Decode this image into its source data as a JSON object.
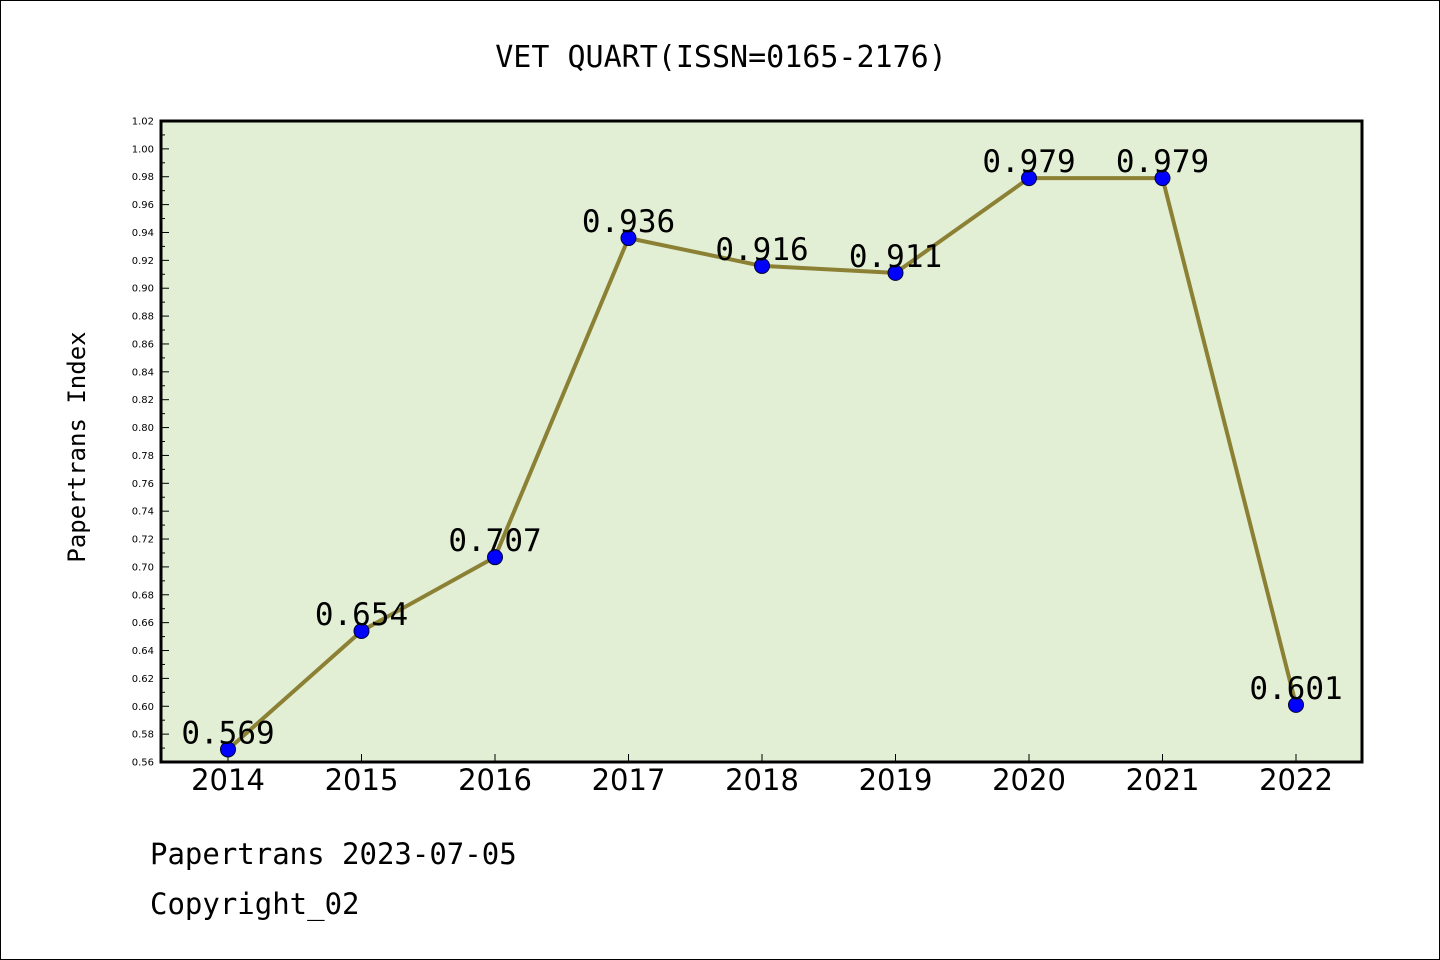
{
  "chart_data": {
    "type": "line",
    "title": "VET QUART(ISSN=0165-2176)",
    "ylabel": "Papertrans Index",
    "xlabel": "",
    "categories": [
      "2014",
      "2015",
      "2016",
      "2017",
      "2018",
      "2019",
      "2020",
      "2021",
      "2022"
    ],
    "values": [
      0.569,
      0.654,
      0.707,
      0.936,
      0.916,
      0.911,
      0.979,
      0.979,
      0.601
    ],
    "data_labels": [
      "0.569",
      "0.654",
      "0.707",
      "0.936",
      "0.916",
      "0.911",
      "0.979",
      "0.979",
      "0.601"
    ],
    "ylim": [
      0.56,
      1.02
    ],
    "yticks": [
      "0.56",
      "0.58",
      "0.60",
      "0.62",
      "0.64",
      "0.66",
      "0.68",
      "0.70",
      "0.72",
      "0.74",
      "0.76",
      "0.78",
      "0.80",
      "0.82",
      "0.84",
      "0.86",
      "0.88",
      "0.90",
      "0.92",
      "0.94",
      "0.96",
      "0.98",
      "1.00",
      "1.02"
    ],
    "grid": false,
    "legend": "none",
    "colors": {
      "plot_background": "#e2efd5",
      "line": "#8b8033",
      "marker": "#0000ff",
      "axes": "#000000"
    }
  },
  "footer": {
    "line1": "Papertrans 2023-07-05",
    "line2": "Copyright_02"
  }
}
